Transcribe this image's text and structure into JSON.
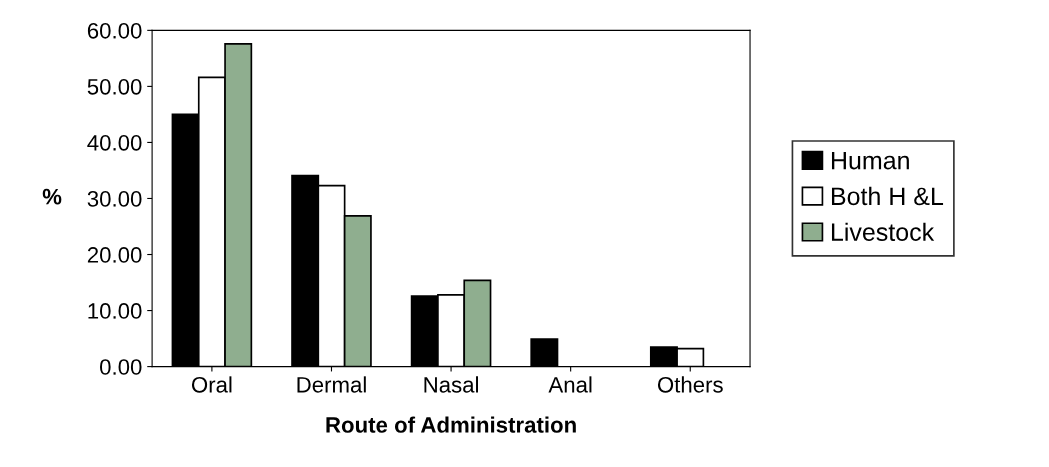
{
  "chart_data": {
    "type": "bar",
    "xlabel": "Route of Administration",
    "ylabel": "%",
    "categories": [
      "Oral",
      "Dermal",
      "Nasal",
      "Anal",
      "Others"
    ],
    "series": [
      {
        "name": "Human",
        "color": "#000000",
        "values": [
          45.0,
          34.1,
          12.6,
          4.9,
          3.5
        ]
      },
      {
        "name": "Both H &L",
        "color": "#ffffff",
        "values": [
          51.6,
          32.3,
          12.8,
          null,
          3.2
        ]
      },
      {
        "name": "Livestock",
        "color": "#8fae8f",
        "values": [
          57.6,
          26.9,
          15.4,
          null,
          null
        ]
      }
    ],
    "ylim": [
      0,
      60
    ],
    "yticks": [
      {
        "value": 0,
        "label": "0.00"
      },
      {
        "value": 10,
        "label": "10.00"
      },
      {
        "value": 20,
        "label": "20.00"
      },
      {
        "value": 30,
        "label": "30.00"
      },
      {
        "value": 40,
        "label": "40.00"
      },
      {
        "value": 50,
        "label": "50.00"
      },
      {
        "value": 60,
        "label": "60.00"
      }
    ],
    "grid": false,
    "legend": "right"
  }
}
